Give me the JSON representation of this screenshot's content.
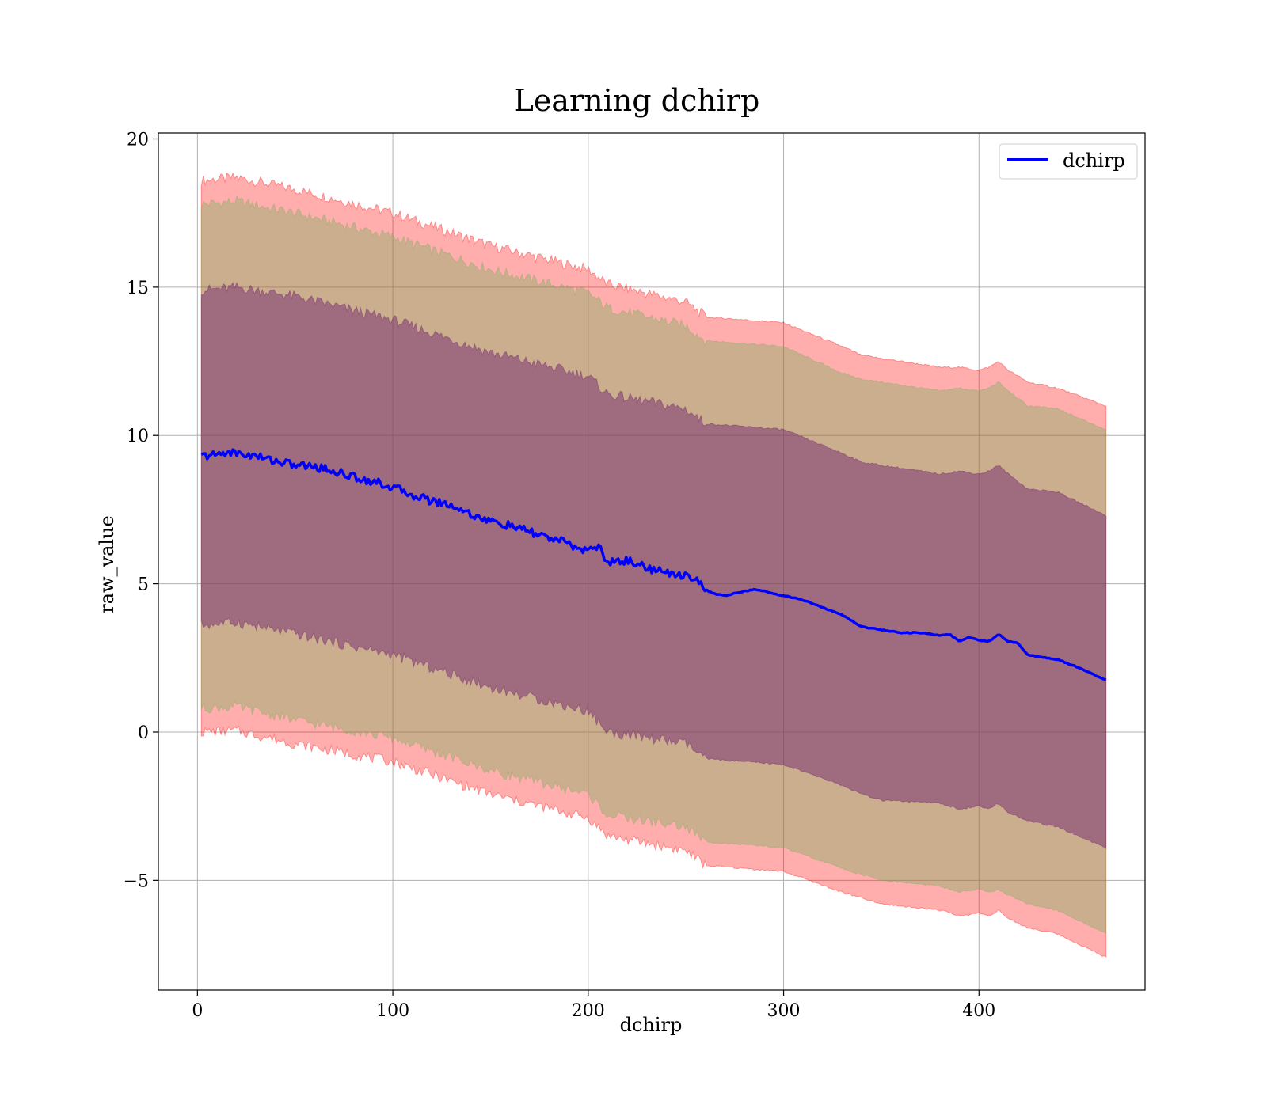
{
  "chart_data": {
    "type": "line",
    "title": "Learning dchirp",
    "xlabel": "dchirp",
    "ylabel": "raw_value",
    "xlim": [
      -20,
      485
    ],
    "ylim": [
      -8.7,
      20.2
    ],
    "xticks": [
      0,
      100,
      200,
      300,
      400
    ],
    "yticks": [
      -5,
      0,
      5,
      10,
      15,
      20
    ],
    "xtick_labels": [
      "0",
      "100",
      "200",
      "300",
      "400"
    ],
    "ytick_labels": [
      "−5",
      "0",
      "5",
      "10",
      "15",
      "20"
    ],
    "grid": true,
    "legend_position": "top-right",
    "series": [
      {
        "name": "dchirp",
        "color": "#0000ff",
        "x": [
          2,
          10,
          15,
          20,
          30,
          40,
          50,
          60,
          70,
          80,
          90,
          100,
          110,
          120,
          130,
          140,
          150,
          160,
          170,
          180,
          190,
          195,
          200,
          205,
          210,
          215,
          220,
          230,
          240,
          250,
          255,
          260,
          265,
          270,
          280,
          285,
          290,
          300,
          310,
          320,
          330,
          340,
          350,
          360,
          370,
          380,
          385,
          390,
          395,
          400,
          405,
          410,
          415,
          420,
          425,
          430,
          440,
          450,
          465
        ],
        "y": [
          9.3,
          9.35,
          9.45,
          9.4,
          9.3,
          9.15,
          9.0,
          8.95,
          8.8,
          8.6,
          8.45,
          8.25,
          8.0,
          7.8,
          7.65,
          7.35,
          7.1,
          6.95,
          6.75,
          6.55,
          6.35,
          6.2,
          6.1,
          6.3,
          5.7,
          5.75,
          5.8,
          5.55,
          5.35,
          5.3,
          5.2,
          4.8,
          4.65,
          4.6,
          4.75,
          4.8,
          4.75,
          4.6,
          4.45,
          4.2,
          3.95,
          3.55,
          3.45,
          3.35,
          3.35,
          3.25,
          3.3,
          3.05,
          3.2,
          3.1,
          3.05,
          3.3,
          3.05,
          3.0,
          2.6,
          2.55,
          2.45,
          2.2,
          1.75
        ]
      }
    ],
    "bands": [
      {
        "color": "#ff0000",
        "opacity": 0.32,
        "x": [
          2,
          20,
          50,
          100,
          150,
          200,
          210,
          250,
          260,
          300,
          330,
          340,
          350,
          380,
          390,
          400,
          405,
          410,
          415,
          425,
          440,
          465
        ],
        "upper": [
          18.6,
          18.7,
          18.3,
          17.5,
          16.4,
          15.6,
          15.1,
          14.5,
          14.0,
          13.8,
          13.0,
          12.7,
          12.6,
          12.3,
          12.3,
          12.2,
          12.3,
          12.5,
          12.2,
          11.8,
          11.6,
          11.0
        ],
        "lower": [
          0.0,
          0.05,
          -0.4,
          -1.0,
          -2.1,
          -2.9,
          -3.5,
          -4.0,
          -4.5,
          -4.7,
          -5.4,
          -5.6,
          -5.8,
          -6.0,
          -6.2,
          -6.1,
          -6.2,
          -6.0,
          -6.3,
          -6.6,
          -6.8,
          -7.6
        ]
      },
      {
        "color": "#77b05c",
        "opacity": 0.38,
        "x": [
          2,
          20,
          50,
          100,
          150,
          200,
          210,
          250,
          260,
          300,
          330,
          340,
          350,
          380,
          390,
          400,
          405,
          410,
          415,
          425,
          440,
          465
        ],
        "upper": [
          17.8,
          17.9,
          17.5,
          16.7,
          15.6,
          14.8,
          14.3,
          13.7,
          13.2,
          13.0,
          12.1,
          11.9,
          11.8,
          11.5,
          11.6,
          11.5,
          11.6,
          11.8,
          11.5,
          11.0,
          10.9,
          10.2
        ],
        "lower": [
          0.8,
          0.85,
          0.4,
          -0.2,
          -1.3,
          -2.1,
          -2.8,
          -3.2,
          -3.7,
          -3.9,
          -4.6,
          -4.8,
          -5.0,
          -5.2,
          -5.4,
          -5.3,
          -5.4,
          -5.3,
          -5.5,
          -5.8,
          -6.0,
          -6.8
        ]
      },
      {
        "color": "#6a1a6a",
        "opacity": 0.45,
        "x": [
          2,
          20,
          50,
          100,
          150,
          200,
          210,
          250,
          260,
          300,
          330,
          340,
          350,
          380,
          390,
          400,
          405,
          410,
          415,
          425,
          440,
          465
        ],
        "upper": [
          14.9,
          15.0,
          14.7,
          13.9,
          12.8,
          12.0,
          11.4,
          10.9,
          10.4,
          10.2,
          9.4,
          9.1,
          9.0,
          8.7,
          8.8,
          8.7,
          8.8,
          9.0,
          8.7,
          8.2,
          8.1,
          7.3
        ],
        "lower": [
          3.6,
          3.7,
          3.3,
          2.6,
          1.5,
          0.7,
          0.0,
          -0.4,
          -0.9,
          -1.1,
          -1.8,
          -2.1,
          -2.3,
          -2.4,
          -2.6,
          -2.5,
          -2.6,
          -2.4,
          -2.7,
          -3.0,
          -3.2,
          -3.9
        ]
      }
    ]
  }
}
